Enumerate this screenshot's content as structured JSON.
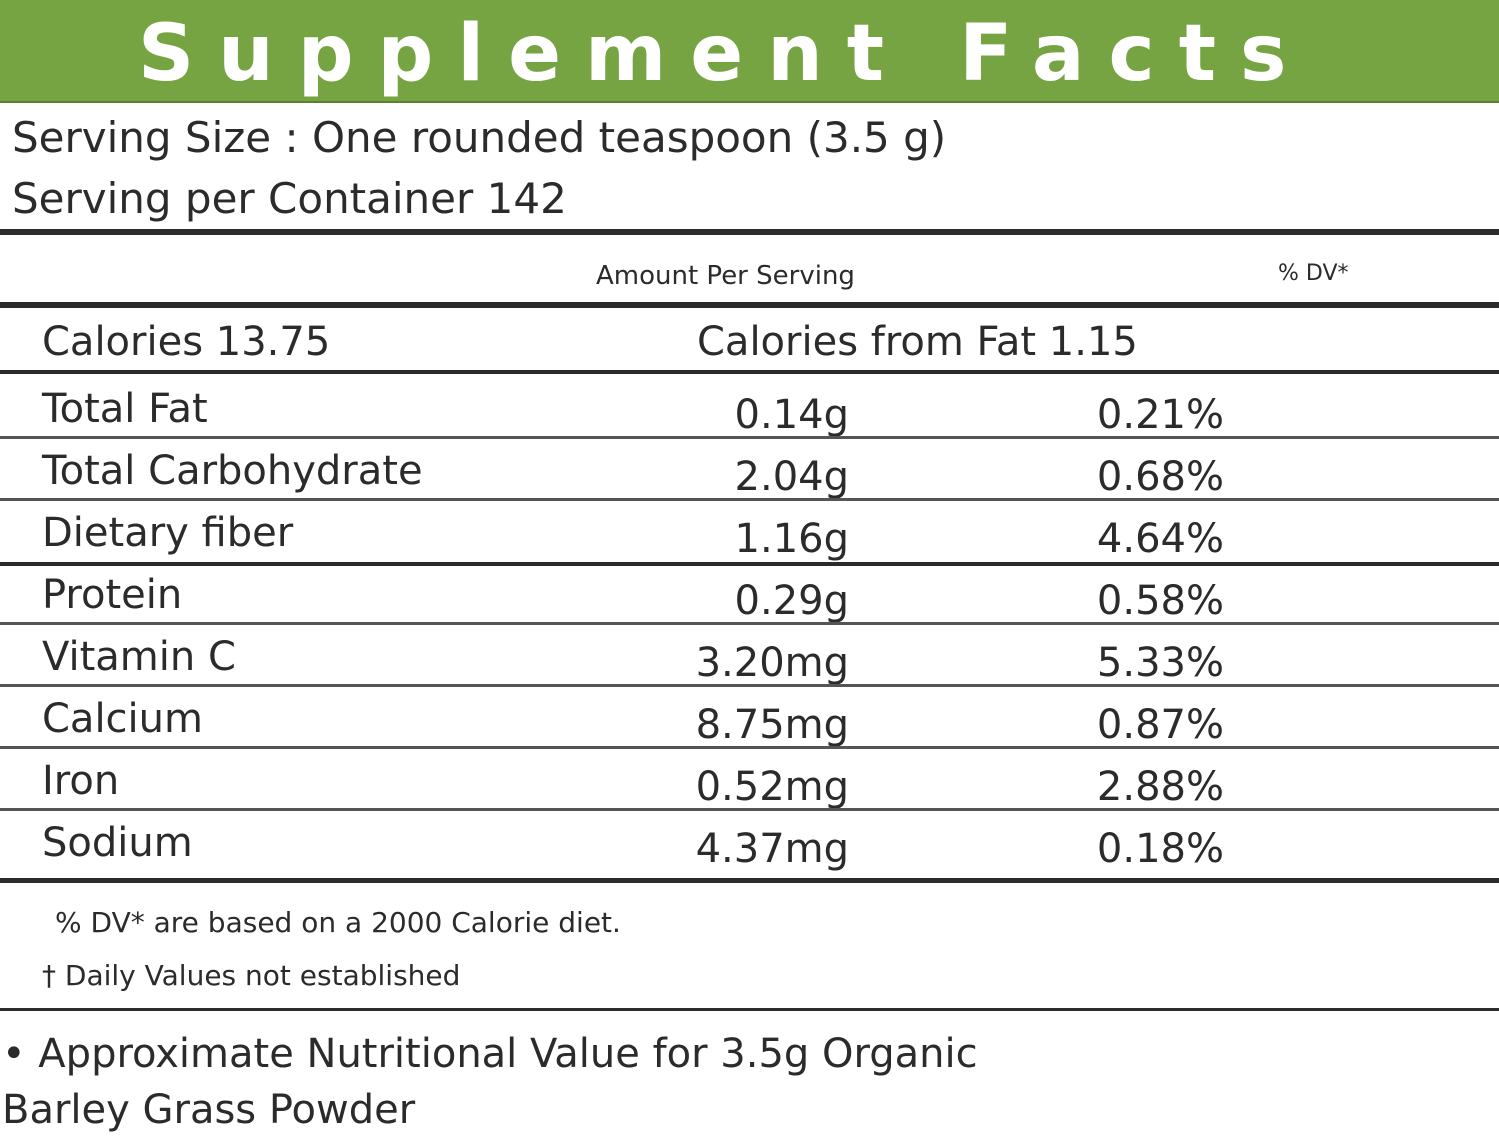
{
  "header": {
    "title": "Supplement Facts",
    "color": "#76a442"
  },
  "serving": {
    "size": "Serving Size : One rounded teaspoon (3.5 g)",
    "per_container": "Serving per Container 142"
  },
  "columns": {
    "amount": "Amount Per Serving",
    "dv": "% DV*"
  },
  "calories": {
    "calories": "Calories 13.75",
    "from_fat": "Calories from Fat 1.15"
  },
  "nutrients": [
    {
      "name": "Total Fat",
      "amount": "0.14g",
      "dv": "0.21%"
    },
    {
      "name": "Total Carbohydrate",
      "amount": "2.04g",
      "dv": "0.68%"
    },
    {
      "name": "Dietary fiber",
      "amount": "1.16g",
      "dv": "4.64%"
    },
    {
      "name": "Protein",
      "amount": "0.29g",
      "dv": "0.58%"
    },
    {
      "name": "Vitamin C",
      "amount": "3.20mg",
      "dv": "5.33%"
    },
    {
      "name": "Calcium",
      "amount": "8.75mg",
      "dv": "0.87%"
    },
    {
      "name": "Iron",
      "amount": "0.52mg",
      "dv": "2.88%"
    },
    {
      "name": "Sodium",
      "amount": "4.37mg",
      "dv": "0.18%"
    }
  ],
  "footnotes": {
    "dv_basis": "% DV* are based on a 2000 Calorie diet.",
    "not_established": "† Daily Values not established"
  },
  "note": {
    "line1": "• Approximate Nutritional Value for 3.5g Organic",
    "line2": "Barley Grass Powder"
  }
}
